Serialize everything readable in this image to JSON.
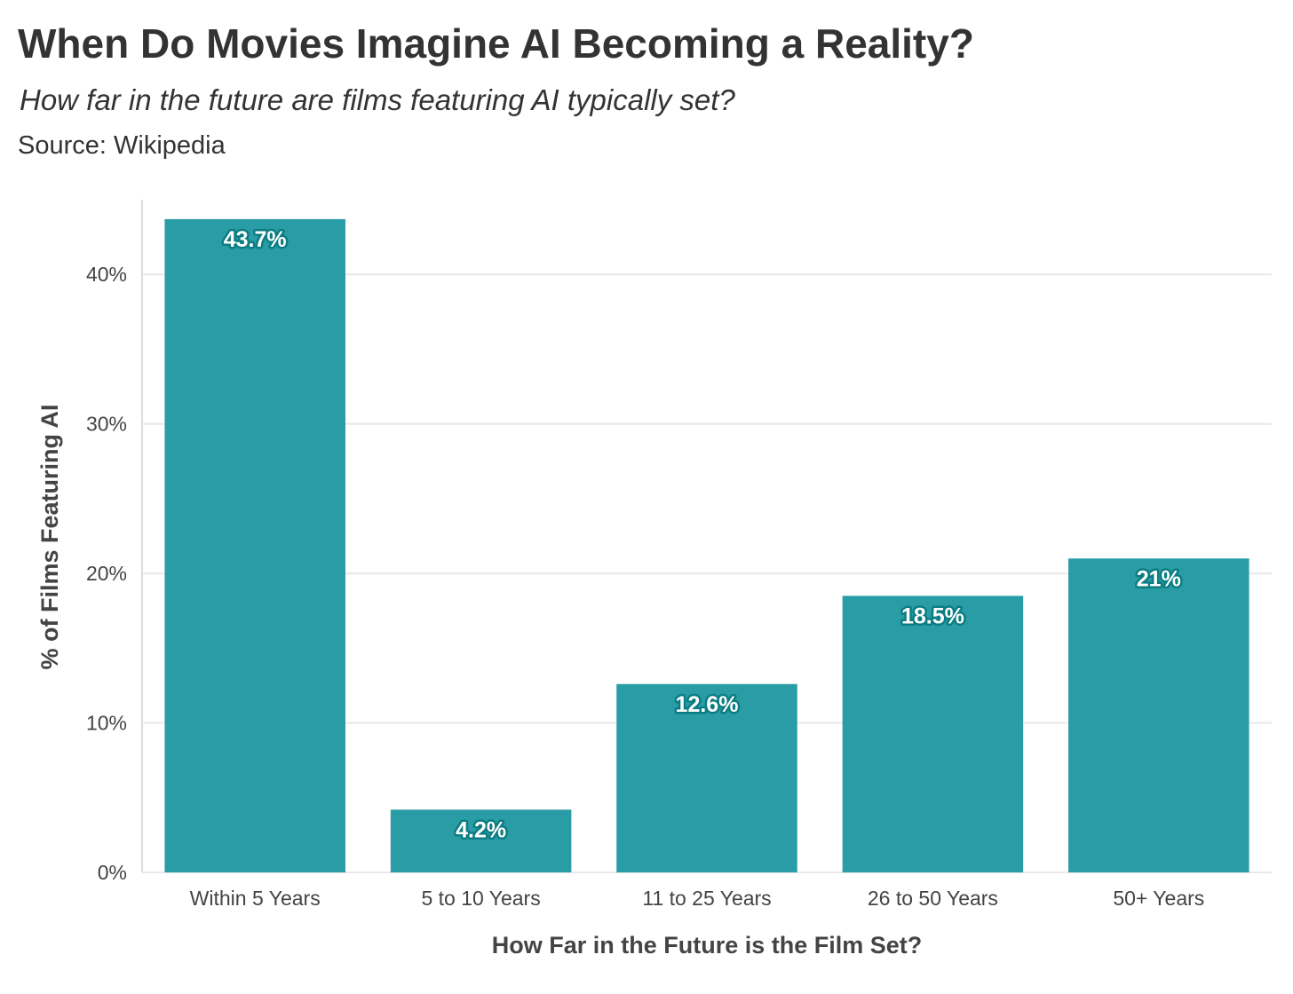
{
  "header": {
    "title": "When Do Movies Imagine AI Becoming a Reality?",
    "subtitle": "How far in the future are films featuring AI typically set?",
    "source": "Source: Wikipedia"
  },
  "colors": {
    "bar": "#2a9ca6",
    "bar_label_outline": "#0b7d82",
    "grid": "#e8e8e8",
    "axis_line": "#dddddd",
    "text": "#333333"
  },
  "chart_data": {
    "type": "bar",
    "categories": [
      "Within 5 Years",
      "5 to 10 Years",
      "11 to 25 Years",
      "26 to 50 Years",
      "50+ Years"
    ],
    "values": [
      43.7,
      4.2,
      12.6,
      18.5,
      21
    ],
    "data_labels": [
      "43.7%",
      "4.2%",
      "12.6%",
      "18.5%",
      "21%"
    ],
    "title": "When Do Movies Imagine AI Becoming a Reality?",
    "subtitle": "How far in the future are films featuring AI typically set?",
    "xlabel": "How Far in the Future is the Film Set?",
    "ylabel": "% of Films Featuring AI",
    "ylim": [
      0,
      45
    ],
    "yticks": [
      0,
      10,
      20,
      30,
      40
    ],
    "ytick_labels": [
      "0%",
      "10%",
      "20%",
      "30%",
      "40%"
    ],
    "grid": true,
    "legend": "none"
  }
}
